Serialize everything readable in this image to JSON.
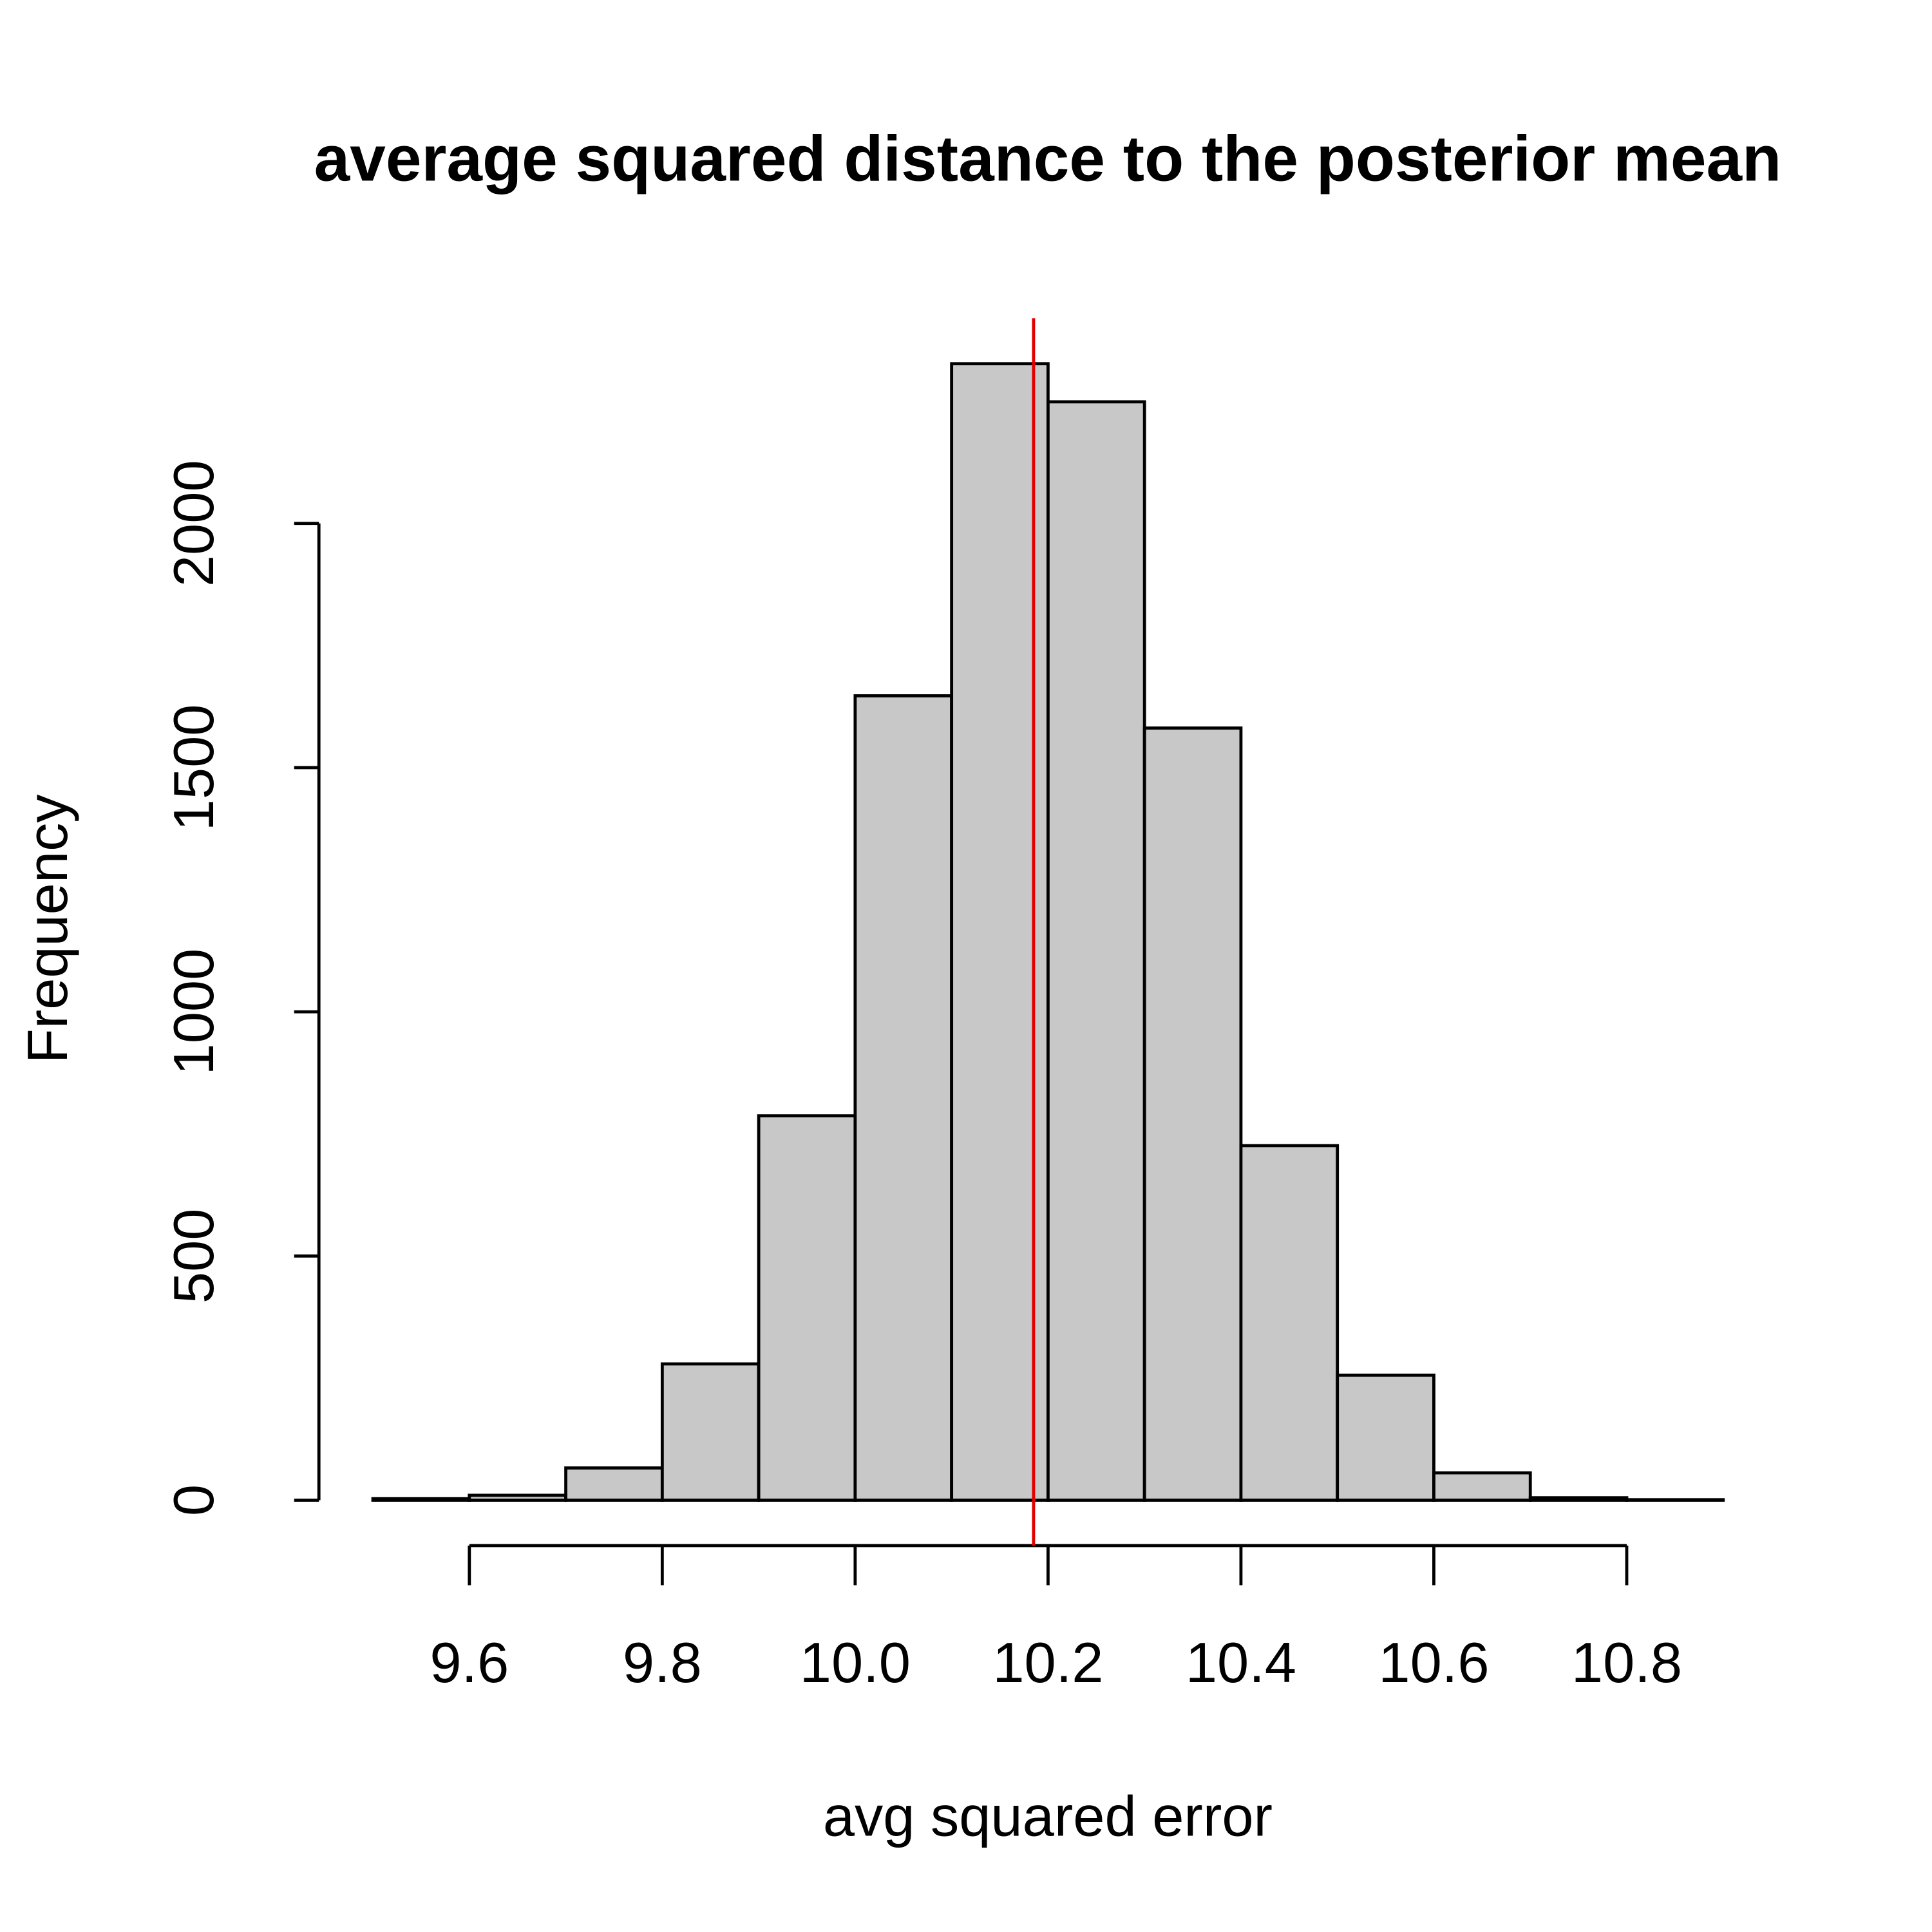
{
  "chart_data": {
    "type": "histogram",
    "title": "average squared distance to the posterior mean",
    "x_label": "avg squared error",
    "y_label": "Frequency",
    "bins": [
      9.5,
      9.6,
      9.7,
      9.8,
      9.9,
      10.0,
      10.1,
      10.2,
      10.3,
      10.4,
      10.5,
      10.6,
      10.7,
      10.8,
      10.9
    ],
    "values": [
      3,
      10,
      66,
      279,
      787,
      1647,
      2327,
      2249,
      1581,
      726,
      256,
      56,
      5,
      1
    ],
    "color": "#c8c8c8",
    "xlim": [
      9.444,
      10.956
    ],
    "ylim": [
      -93,
      2420
    ],
    "xticks": [
      9.6,
      9.8,
      {
        "value": 10,
        "label": "10.0"
      },
      10.2,
      10.4,
      10.6,
      10.8
    ],
    "yticks": [
      0,
      500,
      1000,
      1500,
      2000
    ],
    "vline": 10.185,
    "vline_color": "#e00000"
  }
}
